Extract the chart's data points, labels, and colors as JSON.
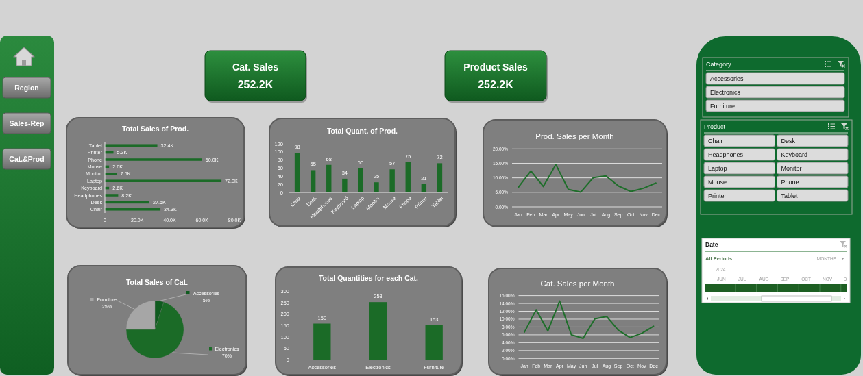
{
  "chart_data": [
    {
      "type": "other",
      "annotations": [
        "Region",
        "Sales-Rep",
        "Cat.&Prod"
      ]
    },
    {
      "type": "other",
      "title": "Cat. Sales",
      "annotations": [
        "252.2K"
      ]
    },
    {
      "type": "other",
      "title": "Product Sales",
      "annotations": [
        "252.2K"
      ]
    },
    {
      "type": "other",
      "title": "Category",
      "annotations": [
        "Accessories",
        "Electronics",
        "Furniture"
      ]
    },
    {
      "type": "other",
      "title": "Product",
      "annotations": [
        "Chair",
        "Desk",
        "Headphones",
        "Keyboard",
        "Laptop",
        "Monitor",
        "Mouse",
        "Phone",
        "Printer",
        "Tablet"
      ]
    },
    {
      "type": "bar",
      "orientation": "horizontal",
      "title": "Total Sales of Prod.",
      "categories": [
        "Tablet",
        "Printer",
        "Phone",
        "Mouse",
        "Monitor",
        "Laptop",
        "Keyboard",
        "Headphones",
        "Desk",
        "Chair"
      ],
      "values": [
        32400,
        5300,
        60000,
        2600,
        7500,
        72000,
        2600,
        8200,
        27500,
        34300
      ],
      "value_labels": [
        "32.4K",
        "5.3K",
        "60.0K",
        "2.6K",
        "7.5K",
        "72.0K",
        "2.6K",
        "8.2K",
        "27.5K",
        "34.3K"
      ],
      "color": "#1b6b27",
      "xlim": [
        0,
        80000
      ],
      "xticks": [
        0,
        {
          "value": 20000,
          "label": "20.0K"
        },
        {
          "value": 40000,
          "label": "40.0K"
        },
        {
          "value": 60000,
          "label": "60.0K"
        },
        {
          "value": 80000,
          "label": "80.0K"
        }
      ]
    },
    {
      "type": "bar",
      "title": "Total Quant. of Prod.",
      "categories": [
        "Chair",
        "Desk",
        "Headphones",
        "Keyboard",
        "Laptop",
        "Monitor",
        "Mouse",
        "Phone",
        "Printer",
        "Tablet"
      ],
      "values": [
        98,
        55,
        68,
        34,
        60,
        25,
        57,
        75,
        21,
        72
      ],
      "data_labels": true,
      "color": "#1b6b27",
      "ylim": [
        0,
        120
      ],
      "yticks": [
        0,
        20,
        40,
        60,
        80,
        100,
        120
      ]
    },
    {
      "type": "line",
      "title": "Prod. Sales per Month",
      "categories": [
        "Jan",
        "Feb",
        "Mar",
        "Apr",
        "May",
        "Jun",
        "Jul",
        "Aug",
        "Sep",
        "Oct",
        "Nov",
        "Dec"
      ],
      "values": [
        6.7,
        12.4,
        7.0,
        14.6,
        6.0,
        5.1,
        10.1,
        10.7,
        7.2,
        5.3,
        6.4,
        8.2
      ],
      "color": "#1e6e2a",
      "ylim": [
        0,
        20
      ],
      "yticks": [
        {
          "value": 0,
          "label": "0.00%"
        },
        {
          "value": 5,
          "label": "5.00%"
        },
        {
          "value": 10,
          "label": "10.00%"
        },
        {
          "value": 15,
          "label": "15.00%"
        },
        {
          "value": 20,
          "label": "20.00%"
        }
      ],
      "grid": "y"
    },
    {
      "type": "other",
      "title": "Date",
      "annotations": [
        "All Periods",
        "MONTHS",
        "2024",
        "JUN",
        "JUL",
        "AUG",
        "SEP",
        "OCT",
        "NOV",
        "D"
      ]
    },
    {
      "type": "pie",
      "title": "Total Sales of Cat.",
      "categories": [
        "Accessories",
        "Electronics",
        "Furniture"
      ],
      "values": [
        5,
        70,
        25
      ],
      "value_labels": [
        "5%",
        "70%",
        "25%"
      ],
      "colors": [
        "#0f5c1f",
        "#1b6b27",
        "#a6a6a6"
      ],
      "legend": "right"
    },
    {
      "type": "bar",
      "title": "Total Quantities for each Cat.",
      "categories": [
        "Accessories",
        "Electronics",
        "Furniture"
      ],
      "values": [
        159,
        253,
        153
      ],
      "data_labels": true,
      "color": "#1b6b27",
      "ylim": [
        0,
        300
      ],
      "yticks": [
        0,
        50,
        100,
        150,
        200,
        250,
        300
      ]
    },
    {
      "type": "line",
      "title": "Cat. Sales per Month",
      "categories": [
        "Jan",
        "Feb",
        "Mar",
        "Apr",
        "May",
        "Jun",
        "Jul",
        "Aug",
        "Sep",
        "Oct",
        "Nov",
        "Dec"
      ],
      "values": [
        6.7,
        12.4,
        7.0,
        14.6,
        6.0,
        5.1,
        10.1,
        10.7,
        7.2,
        5.3,
        6.4,
        8.2
      ],
      "color": "#1e6e2a",
      "ylim": [
        0,
        16
      ],
      "yticks": [
        {
          "value": 0,
          "label": "0.00%"
        },
        {
          "value": 2,
          "label": "2.00%"
        },
        {
          "value": 4,
          "label": "4.00%"
        },
        {
          "value": 6,
          "label": "6.00%"
        },
        {
          "value": 8,
          "label": "8.00%"
        },
        {
          "value": 10,
          "label": "10.00%"
        },
        {
          "value": 12,
          "label": "12.00%"
        },
        {
          "value": 14,
          "label": "14.00%"
        },
        {
          "value": 16,
          "label": "16.00%"
        }
      ],
      "grid": "y"
    }
  ]
}
